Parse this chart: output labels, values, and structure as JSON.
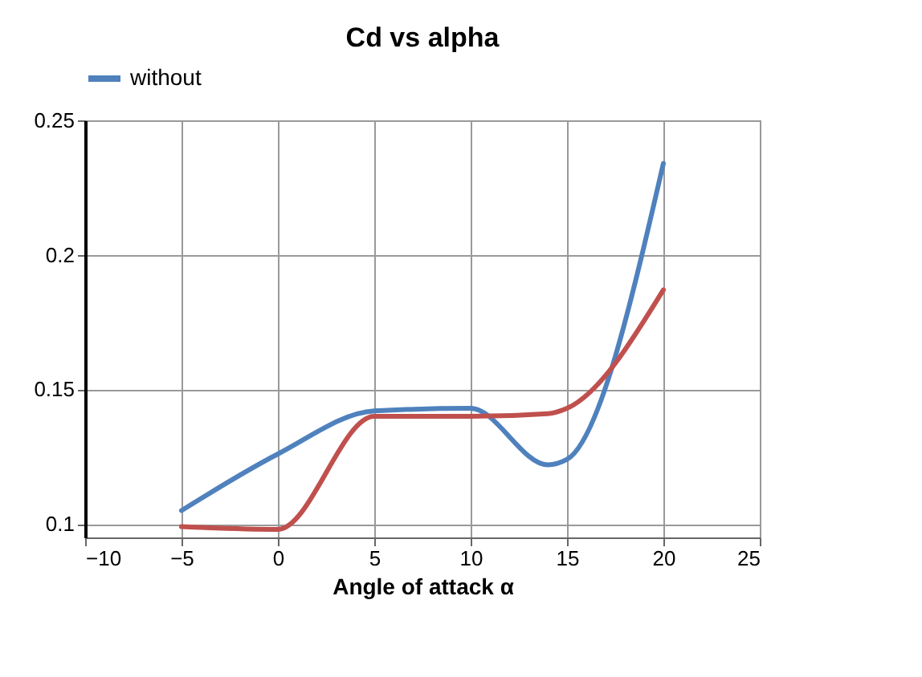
{
  "chart_data": {
    "type": "line",
    "title": "Cd vs alpha",
    "xlabel": "Angle of attack α",
    "x": [
      -5,
      0,
      5,
      10,
      14,
      15,
      20
    ],
    "series": [
      {
        "name": "without",
        "color": "#4f81bd",
        "values": [
          0.105,
          0.126,
          0.142,
          0.143,
          0.122,
          0.124,
          0.234
        ]
      },
      {
        "color": "#c0504d",
        "values": [
          0.099,
          0.098,
          0.14,
          0.14,
          0.141,
          0.143,
          0.187
        ]
      }
    ],
    "xlim": [
      -10,
      25
    ],
    "xticks": [
      -10,
      -5,
      0,
      5,
      10,
      15,
      20,
      25
    ],
    "ylim": [
      0.095,
      0.25
    ],
    "yticks": [
      0.1,
      0.15,
      0.2,
      0.25
    ],
    "grid": true,
    "legend": "top",
    "marker": "none",
    "line_style": "solid"
  }
}
